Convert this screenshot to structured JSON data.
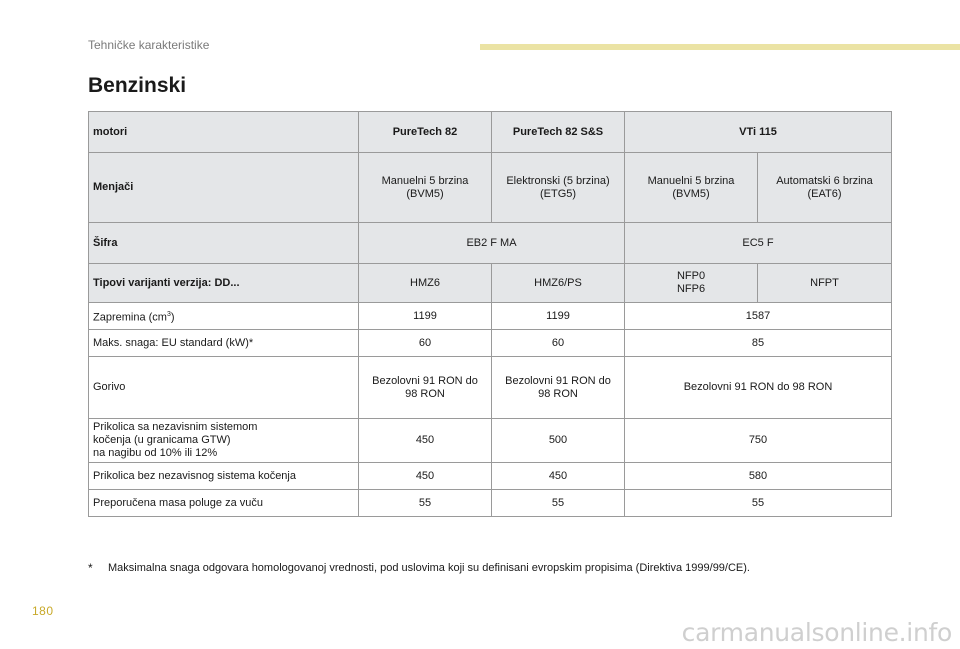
{
  "header": {
    "section": "Tehničke karakteristike",
    "title": "Benzinski"
  },
  "table": {
    "header_row": {
      "label": "motori",
      "cols": [
        "PureTech 82",
        "PureTech 82 S&S",
        "VTi 115"
      ]
    },
    "menjaci": {
      "label": "Menjači",
      "values": [
        "Manuelni 5 brzina\n(BVM5)",
        "Elektronski (5 brzina)\n(ETG5)",
        "Manuelni 5 brzina\n(BVM5)",
        "Automatski 6 brzina\n(EAT6)"
      ]
    },
    "sifra": {
      "label": "Šifra",
      "values": [
        "EB2 F MA",
        "EC5 F"
      ]
    },
    "tipovi": {
      "label": "Tipovi varijanti verzija: DD...",
      "values": [
        "HMZ6",
        "HMZ6/PS",
        "NFP0\nNFP6",
        "NFPT"
      ]
    },
    "zapremina": {
      "label": "Zapremina (cm",
      "sup": "3",
      "label_end": ")",
      "values": [
        "1199",
        "1199",
        "1587"
      ]
    },
    "snaga": {
      "label": "Maks. snaga: EU standard (kW)*",
      "values": [
        "60",
        "60",
        "85"
      ]
    },
    "gorivo": {
      "label": "Gorivo",
      "values": [
        "Bezolovni 91 RON do\n98 RON",
        "Bezolovni 91 RON do\n98 RON",
        "Bezolovni 91 RON do 98 RON"
      ]
    },
    "prikolica_sa": {
      "label": "Prikolica sa nezavisnim sistemom\nkočenja (u granicama GTW)\nna nagibu od 10% ili 12%",
      "values": [
        "450",
        "500",
        "750"
      ]
    },
    "prikolica_bez": {
      "label": "Prikolica bez nezavisnog sistema kočenja",
      "values": [
        "450",
        "450",
        "580"
      ]
    },
    "masa": {
      "label": "Preporučena masa poluge za vuču",
      "values": [
        "55",
        "55",
        "55"
      ]
    }
  },
  "footnote": {
    "marker": "*",
    "text": "Maksimalna snaga odgovara homologovanoj vrednosti, pod uslovima koji su definisani evropskim propisima (Direktiva 1999/99/CE)."
  },
  "page_number": "180",
  "watermark": "carmanualsonline.info",
  "colors": {
    "header_bar": "#ebe3a4",
    "row_shade": "#e4e6e8",
    "page_number": "#c8a92a"
  }
}
